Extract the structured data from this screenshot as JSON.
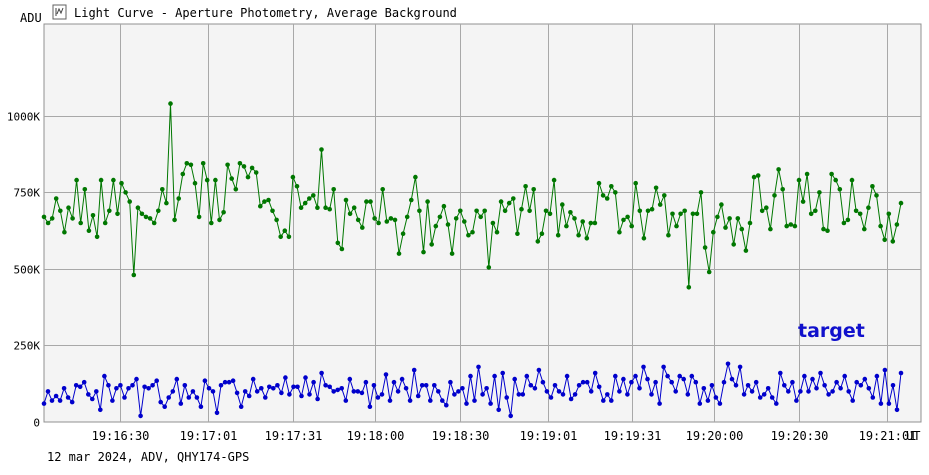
{
  "window": {
    "title": "Light Curve - Aperture Photometry, Average Background",
    "icon": "chart-icon"
  },
  "footer": {
    "text": "12 mar 2024, ADV, QHY174-GPS"
  },
  "chart_data": {
    "type": "line",
    "ylabel": "ADU",
    "xunit": "UT",
    "ylim": [
      0,
      1300000
    ],
    "xlim": [
      "19:16:03",
      "19:21:13"
    ],
    "y_ticks": [
      0,
      250000,
      500000,
      750000,
      1000000
    ],
    "y_tick_labels": [
      "0",
      "250K",
      "500K",
      "750K",
      "1000K"
    ],
    "x_tick_labels": [
      "19:16:30",
      "19:17:01",
      "19:17:31",
      "19:18:00",
      "19:18:30",
      "19:19:01",
      "19:19:31",
      "19:20:00",
      "19:20:30",
      "19:21:01"
    ],
    "x_tick_seconds": [
      0,
      31,
      61,
      90,
      120,
      151,
      181,
      210,
      240,
      271
    ],
    "grid": true,
    "annotations": [
      {
        "text": "target",
        "color": "#1010cc"
      }
    ],
    "series": [
      {
        "color": "#007700",
        "values": [
          670000,
          650000,
          665000,
          730000,
          690000,
          620000,
          700000,
          665000,
          790000,
          650000,
          760000,
          625000,
          675000,
          605000,
          790000,
          650000,
          690000,
          790000,
          680000,
          780000,
          750000,
          720000,
          480000,
          700000,
          680000,
          670000,
          665000,
          650000,
          690000,
          760000,
          715000,
          1040000,
          660000,
          730000,
          810000,
          845000,
          840000,
          780000,
          670000,
          845000,
          790000,
          650000,
          790000,
          660000,
          685000,
          840000,
          795000,
          760000,
          845000,
          835000,
          800000,
          830000,
          815000,
          705000,
          720000,
          725000,
          690000,
          660000,
          605000,
          625000,
          605000,
          800000,
          770000,
          700000,
          715000,
          730000,
          740000,
          700000,
          890000,
          700000,
          695000,
          760000,
          585000,
          565000,
          725000,
          680000,
          700000,
          660000,
          635000,
          720000,
          720000,
          665000,
          650000,
          760000,
          655000,
          665000,
          660000,
          550000,
          615000,
          670000,
          725000,
          800000,
          690000,
          555000,
          720000,
          580000,
          640000,
          670000,
          705000,
          645000,
          550000,
          665000,
          690000,
          655000,
          610000,
          620000,
          690000,
          670000,
          690000,
          505000,
          650000,
          620000,
          720000,
          690000,
          715000,
          730000,
          615000,
          695000,
          770000,
          690000,
          760000,
          590000,
          615000,
          690000,
          680000,
          790000,
          610000,
          710000,
          640000,
          685000,
          665000,
          610000,
          655000,
          600000,
          650000,
          650000,
          780000,
          740000,
          730000,
          770000,
          750000,
          620000,
          660000,
          670000,
          640000,
          780000,
          690000,
          600000,
          690000,
          695000,
          765000,
          710000,
          740000,
          610000,
          680000,
          640000,
          680000,
          690000,
          440000,
          680000,
          680000,
          750000,
          570000,
          490000,
          620000,
          670000,
          710000,
          635000,
          665000,
          580000,
          665000,
          630000,
          560000,
          650000,
          800000,
          805000,
          690000,
          700000,
          630000,
          740000,
          825000,
          760000,
          640000,
          645000,
          640000,
          790000,
          720000,
          810000,
          680000,
          690000,
          750000,
          630000,
          625000,
          810000,
          790000,
          760000,
          650000,
          660000,
          790000,
          690000,
          680000,
          630000,
          700000,
          770000,
          740000,
          640000,
          595000,
          680000,
          590000,
          645000,
          715000
        ]
      },
      {
        "color": "#0000cc",
        "values": [
          60000,
          100000,
          70000,
          85000,
          70000,
          110000,
          80000,
          65000,
          120000,
          115000,
          130000,
          90000,
          75000,
          100000,
          40000,
          150000,
          120000,
          70000,
          110000,
          120000,
          80000,
          110000,
          120000,
          140000,
          20000,
          115000,
          110000,
          120000,
          135000,
          65000,
          50000,
          80000,
          100000,
          140000,
          60000,
          120000,
          80000,
          100000,
          80000,
          50000,
          135000,
          110000,
          100000,
          30000,
          120000,
          130000,
          130000,
          135000,
          95000,
          50000,
          100000,
          85000,
          140000,
          100000,
          110000,
          80000,
          115000,
          110000,
          120000,
          95000,
          145000,
          90000,
          115000,
          115000,
          85000,
          145000,
          90000,
          130000,
          75000,
          160000,
          120000,
          115000,
          100000,
          105000,
          110000,
          70000,
          140000,
          100000,
          100000,
          95000,
          130000,
          50000,
          120000,
          80000,
          90000,
          155000,
          70000,
          130000,
          100000,
          140000,
          110000,
          70000,
          170000,
          85000,
          120000,
          120000,
          70000,
          120000,
          100000,
          70000,
          55000,
          130000,
          90000,
          100000,
          110000,
          60000,
          150000,
          70000,
          180000,
          90000,
          110000,
          60000,
          150000,
          40000,
          160000,
          80000,
          20000,
          140000,
          90000,
          90000,
          150000,
          120000,
          110000,
          170000,
          130000,
          100000,
          80000,
          120000,
          100000,
          90000,
          150000,
          75000,
          90000,
          120000,
          130000,
          130000,
          100000,
          160000,
          115000,
          70000,
          90000,
          70000,
          150000,
          100000,
          140000,
          90000,
          130000,
          150000,
          110000,
          180000,
          140000,
          90000,
          130000,
          60000,
          180000,
          150000,
          130000,
          100000,
          150000,
          140000,
          90000,
          150000,
          130000,
          60000,
          110000,
          70000,
          120000,
          80000,
          60000,
          130000,
          190000,
          140000,
          120000,
          180000,
          90000,
          120000,
          100000,
          130000,
          80000,
          90000,
          110000,
          80000,
          60000,
          160000,
          120000,
          100000,
          130000,
          70000,
          100000,
          150000,
          100000,
          140000,
          110000,
          160000,
          120000,
          90000,
          100000,
          130000,
          110000,
          150000,
          100000,
          70000,
          130000,
          120000,
          140000,
          110000,
          80000,
          150000,
          60000,
          170000,
          60000,
          120000,
          40000,
          160000
        ]
      }
    ]
  }
}
